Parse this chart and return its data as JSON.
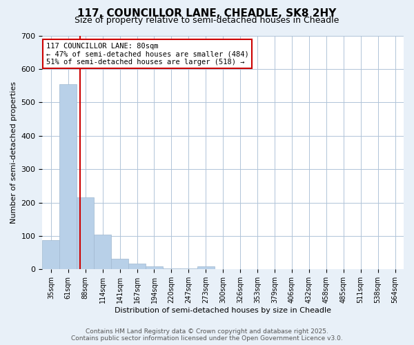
{
  "title": "117, COUNCILLOR LANE, CHEADLE, SK8 2HY",
  "subtitle": "Size of property relative to semi-detached houses in Cheadle",
  "xlabel": "Distribution of semi-detached houses by size in Cheadle",
  "ylabel": "Number of semi-detached properties",
  "categories": [
    "35sqm",
    "61sqm",
    "88sqm",
    "114sqm",
    "141sqm",
    "167sqm",
    "194sqm",
    "220sqm",
    "247sqm",
    "273sqm",
    "300sqm",
    "326sqm",
    "353sqm",
    "379sqm",
    "406sqm",
    "432sqm",
    "458sqm",
    "485sqm",
    "511sqm",
    "538sqm",
    "564sqm"
  ],
  "values": [
    88,
    555,
    215,
    103,
    32,
    18,
    10,
    2,
    2,
    8,
    0,
    0,
    0,
    0,
    0,
    0,
    0,
    0,
    0,
    0,
    0
  ],
  "bar_color": "#b8d0e8",
  "bar_edge_color": "#a0b8d0",
  "property_size": 80,
  "property_label": "117 COUNCILLOR LANE: 80sqm",
  "pct_smaller": 47,
  "n_smaller": 484,
  "pct_larger": 51,
  "n_larger": 518,
  "vline_color": "#cc0000",
  "annotation_box_color": "#cc0000",
  "ylim": [
    0,
    700
  ],
  "yticks": [
    0,
    100,
    200,
    300,
    400,
    500,
    600,
    700
  ],
  "footer_line1": "Contains HM Land Registry data © Crown copyright and database right 2025.",
  "footer_line2": "Contains public sector information licensed under the Open Government Licence v3.0.",
  "bg_color": "#e8f0f8",
  "plot_bg_color": "#ffffff",
  "grid_color": "#b0c4d8"
}
